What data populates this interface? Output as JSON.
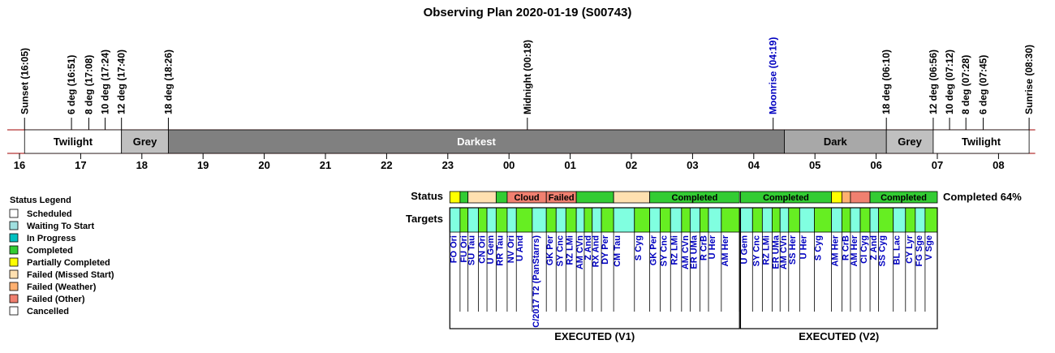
{
  "title": "Observing Plan 2020-01-19 (S00743)",
  "colors": {
    "twilight": "#ffffff",
    "grey": "#c0c0c0",
    "darkest": "#808080",
    "dark": "#a8a8a8",
    "band_border": "#a00000",
    "moonrise": "#0000c0",
    "target_label": "#0000c0",
    "scheduled": "#ffffff",
    "waiting": "#a0e0e0",
    "in_progress": "#00c0c0",
    "completed": "#33cc33",
    "partially_completed": "#ffff00",
    "failed_missed_start": "#ffe0b0",
    "failed_weather": "#ffb070",
    "failed_other": "#f08070",
    "cancelled": "#ffffff",
    "target_cyan": "#80ffe0",
    "target_green": "#66ee22"
  },
  "chart_data": {
    "type": "timeline",
    "x_unit": "hour",
    "x_start": 15.8,
    "x_end": 32.6,
    "hour_ticks": [
      "16",
      "17",
      "18",
      "19",
      "20",
      "21",
      "22",
      "23",
      "00",
      "01",
      "02",
      "03",
      "04",
      "05",
      "06",
      "07",
      "08"
    ],
    "events": [
      {
        "label": "Sunset (16:05)",
        "t": 16.083
      },
      {
        "label": "6 deg (16:51)",
        "t": 16.85
      },
      {
        "label": "8 deg (17:08)",
        "t": 17.133
      },
      {
        "label": "10 deg (17:24)",
        "t": 17.4
      },
      {
        "label": "12 deg (17:40)",
        "t": 17.667
      },
      {
        "label": "18 deg (18:26)",
        "t": 18.433
      },
      {
        "label": "Midnight (00:18)",
        "t": 24.3
      },
      {
        "label": "Moonrise (04:19)",
        "t": 28.317,
        "color": "#0000c0"
      },
      {
        "label": "18 deg (06:10)",
        "t": 30.167
      },
      {
        "label": "12 deg (06:56)",
        "t": 30.933
      },
      {
        "label": "10 deg (07:12)",
        "t": 31.2
      },
      {
        "label": "8 deg (07:28)",
        "t": 31.467
      },
      {
        "label": "6 deg (07:45)",
        "t": 31.75
      },
      {
        "label": "Sunrise (08:30)",
        "t": 32.5
      }
    ],
    "bands": [
      {
        "label": "Twilight",
        "start": 16.083,
        "end": 17.667,
        "color": "#ffffff"
      },
      {
        "label": "Grey",
        "start": 17.667,
        "end": 18.433,
        "color": "#c0c0c0"
      },
      {
        "label": "Darkest",
        "start": 18.433,
        "end": 28.5,
        "color": "#808080"
      },
      {
        "label": "Dark",
        "start": 28.5,
        "end": 30.167,
        "color": "#a8a8a8"
      },
      {
        "label": "Grey",
        "start": 30.167,
        "end": 30.933,
        "color": "#c0c0c0"
      },
      {
        "label": "Twilight",
        "start": 30.933,
        "end": 32.5,
        "color": "#ffffff"
      }
    ],
    "status_label": "Status",
    "targets_label": "Targets",
    "completion_text": "Completed 64%",
    "blocks": [
      {
        "footer": "EXECUTED (V1)",
        "start": 23.033,
        "end": 27.767,
        "status": [
          {
            "start": 23.033,
            "end": 23.2,
            "state": "partially_completed",
            "label": ""
          },
          {
            "start": 23.2,
            "end": 23.33,
            "state": "completed",
            "label": ""
          },
          {
            "start": 23.33,
            "end": 23.79,
            "state": "failed_missed_start",
            "label": ""
          },
          {
            "start": 23.79,
            "end": 23.97,
            "state": "completed",
            "label": ""
          },
          {
            "start": 23.97,
            "end": 24.61,
            "state": "failed_other",
            "label": "Cloud"
          },
          {
            "start": 24.61,
            "end": 25.1,
            "state": "failed_other",
            "label": "Failed"
          },
          {
            "start": 25.1,
            "end": 25.71,
            "state": "completed",
            "label": ""
          },
          {
            "start": 25.71,
            "end": 26.3,
            "state": "failed_missed_start",
            "label": ""
          },
          {
            "start": 26.3,
            "end": 27.767,
            "state": "completed",
            "label": "Completed"
          }
        ],
        "targets": [
          {
            "name": "FO Ori",
            "end": 23.2,
            "color": "cyan"
          },
          {
            "name": "FU Ori",
            "end": 23.33,
            "color": "green"
          },
          {
            "name": "SU Tau",
            "end": 23.5,
            "color": "cyan"
          },
          {
            "name": "CN Ori",
            "end": 23.64,
            "color": "green"
          },
          {
            "name": "U Gem",
            "end": 23.79,
            "color": "cyan"
          },
          {
            "name": "RR Tau",
            "end": 23.97,
            "color": "green"
          },
          {
            "name": "NV Ori",
            "end": 24.12,
            "color": "cyan"
          },
          {
            "name": "U And",
            "end": 24.38,
            "color": "green"
          },
          {
            "name": "C/2017 T2 (PanStarrs)",
            "end": 24.61,
            "color": "cyan"
          },
          {
            "name": "GK Per",
            "end": 24.77,
            "color": "green"
          },
          {
            "name": "SY Cnc",
            "end": 24.93,
            "color": "cyan"
          },
          {
            "name": "RZ LMi",
            "end": 25.1,
            "color": "green"
          },
          {
            "name": "AM CVn",
            "end": 25.23,
            "color": "cyan"
          },
          {
            "name": "Z And",
            "end": 25.36,
            "color": "green"
          },
          {
            "name": "RX And",
            "end": 25.51,
            "color": "cyan"
          },
          {
            "name": "DY Per",
            "end": 25.71,
            "color": "green"
          },
          {
            "name": "CM Tau",
            "end": 26.05,
            "color": "cyan"
          },
          {
            "name": "S Cyg",
            "end": 26.3,
            "color": "green"
          },
          {
            "name": "GK Per",
            "end": 26.47,
            "color": "cyan"
          },
          {
            "name": "SY Cnc",
            "end": 26.64,
            "color": "green"
          },
          {
            "name": "RZ LMi",
            "end": 26.82,
            "color": "cyan"
          },
          {
            "name": "AM CVn",
            "end": 26.96,
            "color": "green"
          },
          {
            "name": "ER UMa",
            "end": 27.12,
            "color": "cyan"
          },
          {
            "name": "R CrB",
            "end": 27.26,
            "color": "green"
          },
          {
            "name": "U Her",
            "end": 27.47,
            "color": "cyan"
          },
          {
            "name": "AM Her",
            "end": 27.767,
            "color": "green"
          }
        ]
      },
      {
        "footer": "EXECUTED (V2)",
        "start": 27.783,
        "end": 31.0,
        "status": [
          {
            "start": 27.783,
            "end": 29.27,
            "state": "completed",
            "label": "Completed"
          },
          {
            "start": 29.27,
            "end": 29.44,
            "state": "partially_completed",
            "label": ""
          },
          {
            "start": 29.44,
            "end": 29.58,
            "state": "failed_weather",
            "label": ""
          },
          {
            "start": 29.58,
            "end": 29.9,
            "state": "failed_other",
            "label": ""
          },
          {
            "start": 29.9,
            "end": 31.0,
            "state": "completed",
            "label": "Completed"
          }
        ],
        "targets": [
          {
            "name": "U Gem",
            "end": 27.98,
            "color": "cyan"
          },
          {
            "name": "SY Cnc",
            "end": 28.14,
            "color": "green"
          },
          {
            "name": "RZ LMi",
            "end": 28.3,
            "color": "cyan"
          },
          {
            "name": "ER UMa",
            "end": 28.43,
            "color": "green"
          },
          {
            "name": "AM CVn",
            "end": 28.57,
            "color": "cyan"
          },
          {
            "name": "SS Her",
            "end": 28.75,
            "color": "green"
          },
          {
            "name": "U Her",
            "end": 28.99,
            "color": "cyan"
          },
          {
            "name": "S Cyg",
            "end": 29.27,
            "color": "green"
          },
          {
            "name": "AM Her",
            "end": 29.44,
            "color": "cyan"
          },
          {
            "name": "R CrB",
            "end": 29.58,
            "color": "green"
          },
          {
            "name": "AM Her",
            "end": 29.74,
            "color": "cyan"
          },
          {
            "name": "CI Cyg",
            "end": 29.9,
            "color": "green"
          },
          {
            "name": "Z And",
            "end": 30.04,
            "color": "cyan"
          },
          {
            "name": "SS Cyg",
            "end": 30.28,
            "color": "green"
          },
          {
            "name": "BL Lac",
            "end": 30.48,
            "color": "cyan"
          },
          {
            "name": "CY Lyr",
            "end": 30.64,
            "color": "green"
          },
          {
            "name": "FG Sge",
            "end": 30.8,
            "color": "cyan"
          },
          {
            "name": "V Sge",
            "end": 31.0,
            "color": "green"
          }
        ]
      }
    ]
  },
  "legend": {
    "title": "Status Legend",
    "items": [
      {
        "label": "Scheduled",
        "color": "#ffffff"
      },
      {
        "label": "Waiting To Start",
        "color": "#a0e0e0"
      },
      {
        "label": "In Progress",
        "color": "#00c0c0"
      },
      {
        "label": "Completed",
        "color": "#33cc33"
      },
      {
        "label": "Partially Completed",
        "color": "#ffff00"
      },
      {
        "label": "Failed (Missed Start)",
        "color": "#ffe0b0"
      },
      {
        "label": "Failed (Weather)",
        "color": "#ffb070"
      },
      {
        "label": "Failed (Other)",
        "color": "#f08070"
      },
      {
        "label": "Cancelled",
        "color": "#ffffff"
      }
    ]
  }
}
